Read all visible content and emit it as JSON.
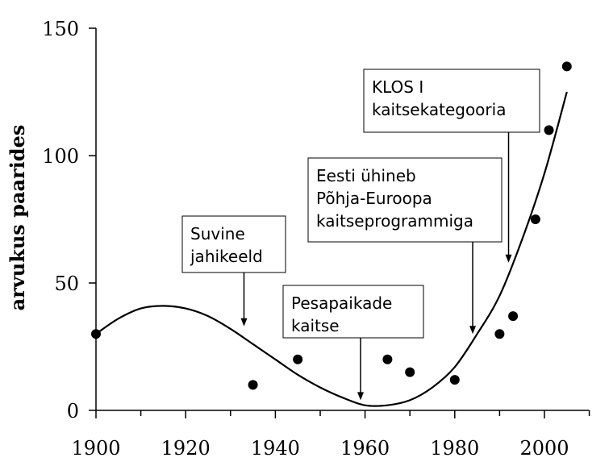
{
  "chart_data": {
    "type": "scatter",
    "title": "",
    "xlabel": "",
    "ylabel": "arvukus paarides",
    "xlim": [
      1900,
      2010
    ],
    "ylim": [
      0,
      150
    ],
    "x_ticks": [
      "1900",
      "1920",
      "1940",
      "1960",
      "1980",
      "2000"
    ],
    "y_ticks": [
      "0",
      "50",
      "100",
      "150"
    ],
    "grid": false,
    "series": [
      {
        "points": [
          {
            "x": 1900,
            "y": 30
          },
          {
            "x": 1935,
            "y": 10
          },
          {
            "x": 1945,
            "y": 20
          },
          {
            "x": 1965,
            "y": 20
          },
          {
            "x": 1970,
            "y": 15
          },
          {
            "x": 1980,
            "y": 12
          },
          {
            "x": 1990,
            "y": 30
          },
          {
            "x": 1993,
            "y": 37
          },
          {
            "x": 1998,
            "y": 75
          },
          {
            "x": 2001,
            "y": 110
          },
          {
            "x": 2005,
            "y": 135
          }
        ]
      }
    ],
    "trendline": {
      "type": "polynomial",
      "points": [
        {
          "x": 1900,
          "y": 30
        },
        {
          "x": 1905,
          "y": 36
        },
        {
          "x": 1910,
          "y": 40
        },
        {
          "x": 1915,
          "y": 41
        },
        {
          "x": 1920,
          "y": 40
        },
        {
          "x": 1925,
          "y": 37
        },
        {
          "x": 1930,
          "y": 32
        },
        {
          "x": 1935,
          "y": 26
        },
        {
          "x": 1940,
          "y": 20
        },
        {
          "x": 1945,
          "y": 14
        },
        {
          "x": 1950,
          "y": 9
        },
        {
          "x": 1955,
          "y": 5
        },
        {
          "x": 1960,
          "y": 2
        },
        {
          "x": 1965,
          "y": 2
        },
        {
          "x": 1970,
          "y": 4
        },
        {
          "x": 1975,
          "y": 9
        },
        {
          "x": 1980,
          "y": 17
        },
        {
          "x": 1985,
          "y": 30
        },
        {
          "x": 1990,
          "y": 45
        },
        {
          "x": 1995,
          "y": 67
        },
        {
          "x": 2000,
          "y": 93
        },
        {
          "x": 2005,
          "y": 125
        }
      ]
    },
    "annotations": [
      {
        "lines": [
          "Suvine",
          "jahikeeld"
        ],
        "arrow_x": 1933,
        "arrow_y": 33
      },
      {
        "lines": [
          "Pesapaikade",
          "kaitse"
        ],
        "arrow_x": 1959,
        "arrow_y": 4
      },
      {
        "lines": [
          "Eesti ühineb",
          "Põhja-Euroopa",
          "kaitseprogrammiga"
        ],
        "arrow_x": 1984,
        "arrow_y": 30
      },
      {
        "lines": [
          "KLOS I",
          "kaitsekategooria"
        ],
        "arrow_x": 1992,
        "arrow_y": 58
      }
    ]
  }
}
